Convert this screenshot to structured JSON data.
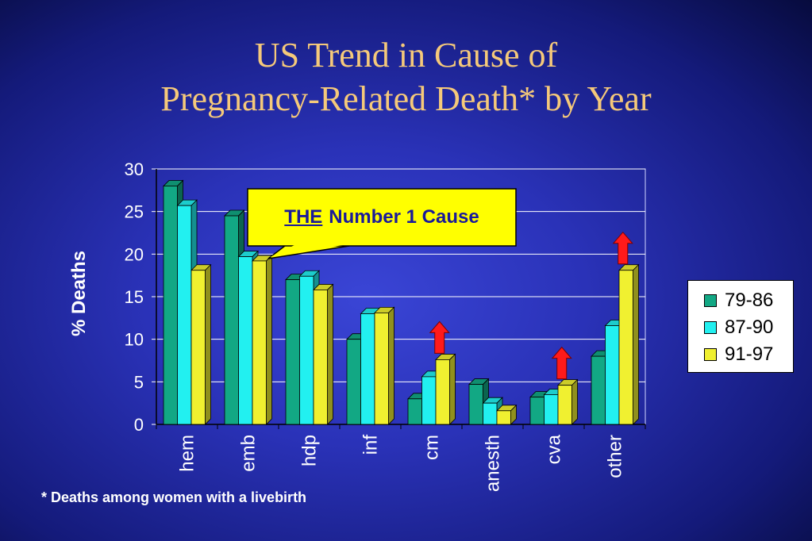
{
  "title_line1": "US Trend in Cause of",
  "title_line2": "Pregnancy-Related Death* by Year",
  "callout": {
    "the": "THE",
    "rest": "Number 1 Cause"
  },
  "footnote": "* Deaths among women with a livebirth",
  "colors": {
    "series1": "#12a884",
    "series2": "#22f0f0",
    "series3": "#f0f030",
    "arrow": "#ff1a1a",
    "callout_bg": "#ffff00",
    "title": "#f5c97a"
  },
  "chart_data": {
    "type": "bar",
    "ylabel": "% Deaths",
    "ylim": [
      0,
      30
    ],
    "yticks": [
      0,
      5,
      10,
      15,
      20,
      25,
      30
    ],
    "grid": true,
    "legend_position": "right",
    "categories": [
      "hem",
      "emb",
      "hdp",
      "inf",
      "cm",
      "anesth",
      "cva",
      "other"
    ],
    "series": [
      {
        "name": "79-86",
        "values": [
          28,
          24.5,
          17,
          10,
          3,
          4.7,
          3.2,
          8
        ]
      },
      {
        "name": "87-90",
        "values": [
          25.7,
          19.7,
          17.4,
          13,
          5.6,
          2.5,
          3.5,
          11.6
        ]
      },
      {
        "name": "91-97",
        "values": [
          18.1,
          19.2,
          15.8,
          13.1,
          7.6,
          1.6,
          4.6,
          18.1
        ]
      }
    ],
    "increase_arrows": [
      "cm",
      "cva",
      "other"
    ]
  }
}
